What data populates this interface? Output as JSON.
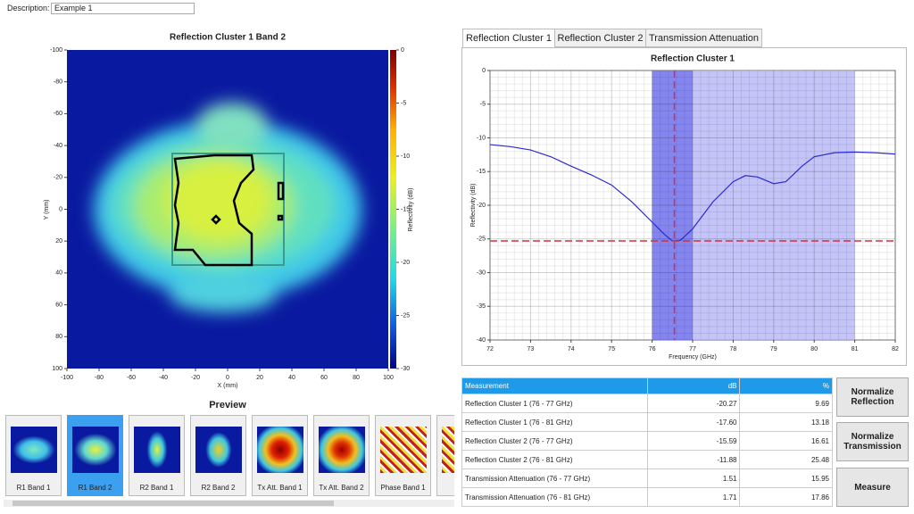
{
  "description": {
    "label": "Description:",
    "value": "Example 1"
  },
  "heatmap": {
    "type": "heatmap",
    "title": "Reflection Cluster 1 Band 2",
    "x_label": "X (mm)",
    "y_label": "Y (mm)",
    "colorbar_label": "Reflectivity (dB)",
    "xlim": [
      -100,
      100
    ],
    "xticks": [
      -100,
      -80,
      -60,
      -40,
      -20,
      0,
      20,
      40,
      60,
      80,
      100
    ],
    "ylim": [
      -100,
      100
    ],
    "yticks": [
      -100,
      -80,
      -60,
      -40,
      -20,
      0,
      20,
      40,
      60,
      80,
      100
    ],
    "clim": [
      0,
      -30
    ],
    "cticks": [
      0,
      -5,
      -10,
      -15,
      -20,
      -25,
      -30
    ]
  },
  "preview": {
    "title": "Preview",
    "items": [
      "R1 Band 1",
      "R1 Band 2",
      "R2 Band 1",
      "R2 Band 2",
      "Tx Att. Band 1",
      "Tx Att. Band 2",
      "Phase Band 1",
      "Ph"
    ],
    "selected": 1
  },
  "tabs": {
    "items": [
      "Reflection Cluster 1",
      "Reflection Cluster 2",
      "Transmission Attenuation"
    ],
    "selected": 0
  },
  "line_chart": {
    "type": "line",
    "title": "Reflection Cluster 1",
    "x_label": "Frequency (GHz)",
    "y_label": "Reflectivity (dB)",
    "x": [
      72,
      72.5,
      73,
      73.5,
      74,
      74.5,
      75,
      75.5,
      76,
      76.3,
      76.5,
      76.7,
      77,
      77.5,
      78,
      78.3,
      78.6,
      79,
      79.3,
      79.7,
      80,
      80.5,
      81,
      81.5,
      82
    ],
    "series": [
      {
        "name": "Reflection Cluster 1",
        "color": "#2a2ad0",
        "values": [
          -11,
          -11.3,
          -11.8,
          -12.8,
          -14.2,
          -15.5,
          -17,
          -19.5,
          -22.5,
          -24.3,
          -25.3,
          -25.2,
          -23.5,
          -19.5,
          -16.5,
          -15.6,
          -15.8,
          -16.8,
          -16.5,
          -14.2,
          -12.8,
          -12.2,
          -12.1,
          -12.2,
          -12.4
        ]
      }
    ],
    "xlim": [
      72,
      82
    ],
    "xticks": [
      72,
      73,
      74,
      75,
      76,
      77,
      78,
      79,
      80,
      81,
      82
    ],
    "ylim": [
      -40,
      0
    ],
    "yticks": [
      0,
      -5,
      -10,
      -15,
      -20,
      -25,
      -30,
      -35,
      -40
    ],
    "grid": true,
    "bands": [
      {
        "from": 76,
        "to": 77,
        "color": "#8585f0"
      },
      {
        "from": 77,
        "to": 81,
        "color": "#c4c4f8"
      }
    ],
    "marker_x": 76.55,
    "marker_y": -25.3,
    "marker_color": "#d03040"
  },
  "table": {
    "headers": [
      "Measurement",
      "dB",
      "%"
    ],
    "rows": [
      [
        "Reflection Cluster 1 (76 - 77 GHz)",
        "-20.27",
        "9.69"
      ],
      [
        "Reflection Cluster 1 (76 - 81 GHz)",
        "-17.60",
        "13.18"
      ],
      [
        "Reflection Cluster 2 (76 - 77 GHz)",
        "-15.59",
        "16.61"
      ],
      [
        "Reflection Cluster 2 (76 - 81 GHz)",
        "-11.88",
        "25.48"
      ],
      [
        "Transmission Attenuation (76 - 77 GHz)",
        "1.51",
        "15.95"
      ],
      [
        "Transmission Attenuation (76 - 81 GHz)",
        "1.71",
        "17.86"
      ]
    ]
  },
  "buttons": [
    "Normalize Reflection",
    "Normalize Transmission",
    "Measure"
  ]
}
